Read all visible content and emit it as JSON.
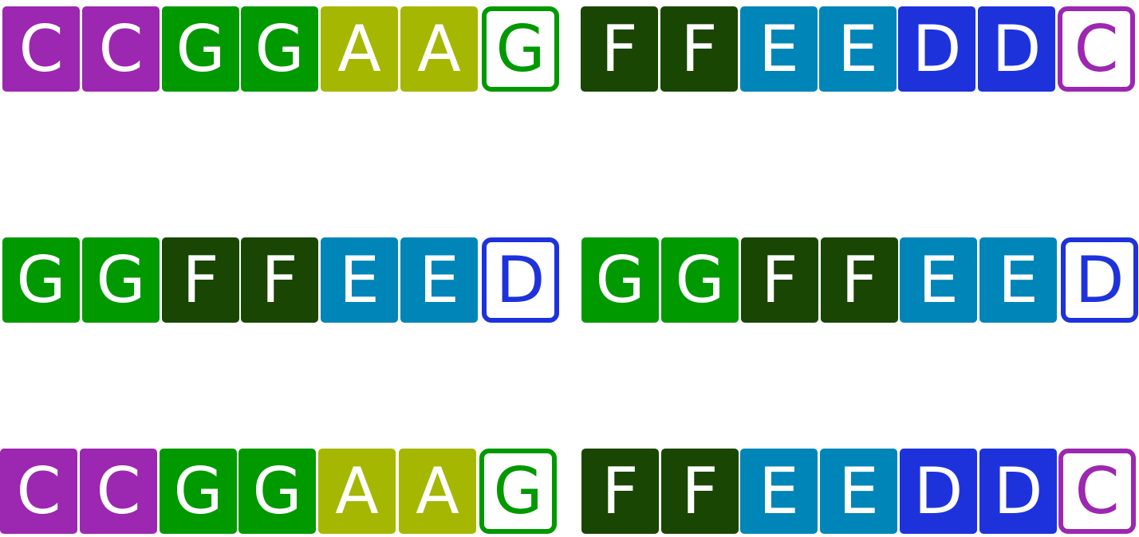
{
  "rows": [
    {
      "notes": [
        "C",
        "C",
        "G",
        "G",
        "A",
        "A",
        "G",
        "F",
        "F",
        "E",
        "E",
        "D",
        "D",
        "C"
      ],
      "outlined": [
        6,
        13
      ]
    },
    {
      "notes": [
        "G",
        "G",
        "F",
        "F",
        "E",
        "E",
        "D",
        "G",
        "G",
        "F",
        "F",
        "E",
        "E",
        "D"
      ],
      "outlined": [
        6,
        13
      ]
    },
    {
      "notes": [
        "C",
        "C",
        "G",
        "G",
        "A",
        "A",
        "G",
        "F",
        "F",
        "E",
        "E",
        "D",
        "D",
        "C"
      ],
      "outlined": [
        6,
        13
      ]
    }
  ],
  "colors": {
    "C": "#9c27b0",
    "G": "#009900",
    "A": "#a5b700",
    "F": "#194603",
    "E": "#0085b8",
    "D": "#1e32dc"
  }
}
